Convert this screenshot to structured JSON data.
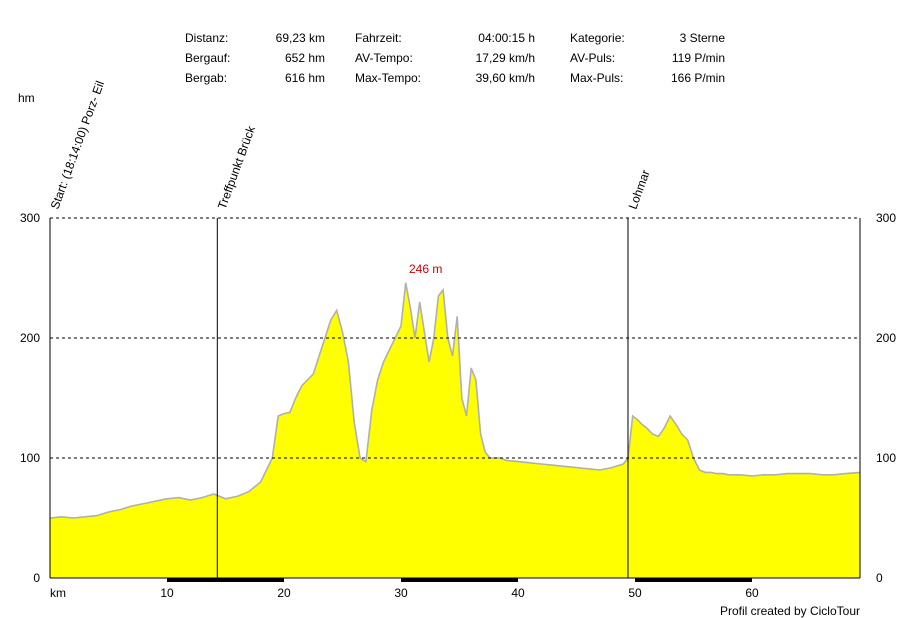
{
  "stats": [
    {
      "label": "Distanz:",
      "value": "69,23 km"
    },
    {
      "label": "Bergauf:",
      "value": "652 hm"
    },
    {
      "label": "Bergab:",
      "value": "616 hm"
    },
    {
      "label": "Fahrzeit:",
      "value": "04:00:15 h"
    },
    {
      "label": "AV-Tempo:",
      "value": "17,29 km/h"
    },
    {
      "label": "Max-Tempo:",
      "value": "39,60 km/h"
    },
    {
      "label": "Kategorie:",
      "value": "3 Sterne"
    },
    {
      "label": "AV-Puls:",
      "value": "119 P/min"
    },
    {
      "label": "Max-Puls:",
      "value": "166 P/min"
    }
  ],
  "credit": "Profil created by CicloTour",
  "colors": {
    "fill": "#ffff00",
    "outline": "#b0b0b0",
    "maxLabel": "#cc0000",
    "axisBar": "#000000"
  },
  "chart_data": {
    "type": "area",
    "ylabel": "hm",
    "xlabel": "km",
    "xlim": [
      0,
      69.23
    ],
    "ylim": [
      0,
      300
    ],
    "yticks": [
      0,
      100,
      200,
      300
    ],
    "xticks": [
      10,
      20,
      30,
      40,
      50,
      60
    ],
    "grid": "dashed horizontal at 100, 200, 300",
    "max_label": {
      "text": "246 m",
      "x": 30.4,
      "y": 246
    },
    "waypoints": [
      {
        "km": 0,
        "name": "Start: (18:14:00) Porz- Eil"
      },
      {
        "km": 14.3,
        "name": "Treffpunkt Brück"
      },
      {
        "km": 49.4,
        "name": "Lohmar"
      }
    ],
    "x": [
      0,
      1,
      2,
      3,
      4,
      5,
      6,
      7,
      8,
      9,
      10,
      11,
      12,
      13,
      14,
      15,
      16,
      17,
      18,
      19,
      19.5,
      20,
      20.5,
      21,
      21.5,
      22,
      22.5,
      23,
      23.5,
      24,
      24.5,
      25,
      25.5,
      26,
      26.5,
      27,
      27.5,
      28,
      28.5,
      29,
      29.5,
      30,
      30.4,
      30.8,
      31.2,
      31.6,
      32,
      32.4,
      32.8,
      33.2,
      33.6,
      34,
      34.4,
      34.8,
      35.2,
      35.6,
      36,
      36.4,
      36.8,
      37.2,
      37.6,
      38,
      38.5,
      39,
      40,
      41,
      42,
      43,
      44,
      45,
      46,
      47,
      48,
      49,
      49.4,
      49.8,
      50.2,
      50.6,
      51,
      51.5,
      52,
      52.5,
      53,
      53.5,
      54,
      54.5,
      55,
      55.5,
      56,
      56.5,
      57,
      57.5,
      58,
      59,
      60,
      61,
      62,
      63,
      64,
      65,
      66,
      67,
      68,
      69.23
    ],
    "values": [
      50,
      51,
      50,
      51,
      52,
      55,
      57,
      60,
      62,
      64,
      66,
      67,
      65,
      67,
      70,
      66,
      68,
      72,
      80,
      100,
      135,
      137,
      138,
      150,
      160,
      165,
      170,
      185,
      200,
      215,
      223,
      205,
      180,
      130,
      100,
      97,
      140,
      165,
      180,
      190,
      200,
      210,
      246,
      225,
      200,
      230,
      205,
      180,
      200,
      235,
      240,
      200,
      185,
      218,
      150,
      135,
      175,
      165,
      120,
      105,
      100,
      100,
      100,
      98,
      97,
      96,
      95,
      94,
      93,
      92,
      91,
      90,
      92,
      95,
      100,
      135,
      132,
      128,
      125,
      120,
      118,
      125,
      135,
      128,
      120,
      115,
      100,
      90,
      88,
      88,
      87,
      87,
      86,
      86,
      85,
      86,
      86,
      87,
      87,
      87,
      86,
      86,
      87,
      88
    ]
  }
}
